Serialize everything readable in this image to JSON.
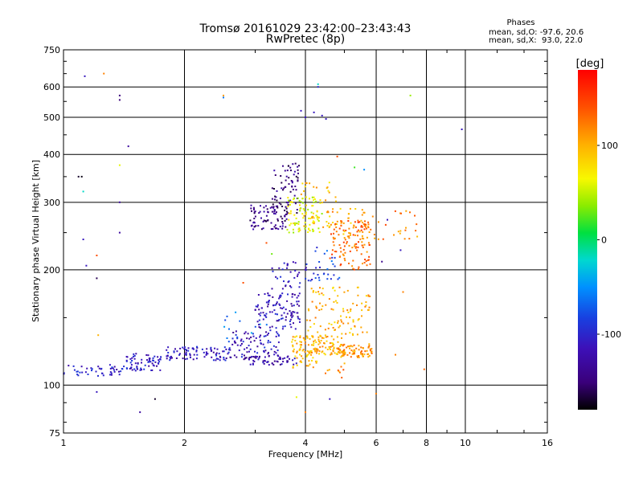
{
  "chart_data": {
    "type": "scatter",
    "title": "Tromsø 20161029 23:42:00–23:43:43",
    "subtitle": "RwPretec (8p)",
    "xlabel": "Frequency [MHz]",
    "ylabel": "Stationary phase Virtual Height [km]",
    "xscale": "log",
    "yscale": "log",
    "xlim": [
      1,
      16
    ],
    "ylim": [
      75,
      750
    ],
    "xticks": [
      1,
      2,
      4,
      6,
      8,
      10,
      16
    ],
    "yticks": [
      75,
      100,
      200,
      300,
      400,
      500,
      600,
      750
    ],
    "grid": true,
    "phases_box": {
      "heading": "Phases",
      "line_o": "mean, sd,O: -97.6, 20.6",
      "line_x": "mean, sd,X:  93.0, 22.0"
    },
    "colorbar": {
      "label": "[deg]",
      "range": [
        -180,
        180
      ],
      "ticks": [
        100,
        0,
        -100
      ]
    },
    "clusters": [
      {
        "x": [
          1.0,
          1.4
        ],
        "y": [
          105,
          113
        ],
        "phase": -105,
        "n": 45
      },
      {
        "x": [
          1.4,
          1.75
        ],
        "y": [
          109,
          121
        ],
        "phase": -110,
        "n": 70
      },
      {
        "x": [
          1.8,
          2.6
        ],
        "y": [
          116,
          126
        ],
        "phase": -110,
        "n": 90
      },
      {
        "x": [
          2.6,
          3.5
        ],
        "y": [
          118,
          140
        ],
        "phase": -115,
        "n": 80
      },
      {
        "x": [
          2.5,
          3.3
        ],
        "y": [
          125,
          155
        ],
        "phase": -60,
        "n": 15
      },
      {
        "x": [
          3.0,
          3.9
        ],
        "y": [
          140,
          175
        ],
        "phase": -115,
        "n": 110
      },
      {
        "x": [
          2.8,
          3.8
        ],
        "y": [
          113,
          119
        ],
        "phase": -125,
        "n": 60
      },
      {
        "x": [
          3.3,
          4.2
        ],
        "y": [
          178,
          210
        ],
        "phase": -110,
        "n": 40
      },
      {
        "x": [
          2.9,
          3.6
        ],
        "y": [
          255,
          295
        ],
        "phase": -140,
        "n": 80
      },
      {
        "x": [
          3.3,
          3.9
        ],
        "y": [
          280,
          380
        ],
        "phase": -145,
        "n": 70
      },
      {
        "x": [
          3.6,
          4.4
        ],
        "y": [
          250,
          310
        ],
        "phase": 60,
        "n": 90
      },
      {
        "x": [
          3.9,
          4.8
        ],
        "y": [
          255,
          340
        ],
        "phase": 95,
        "n": 35
      },
      {
        "x": [
          4.6,
          5.8
        ],
        "y": [
          200,
          270
        ],
        "phase": 130,
        "n": 120
      },
      {
        "x": [
          4.4,
          5.6
        ],
        "y": [
          240,
          290
        ],
        "phase": 100,
        "n": 30
      },
      {
        "x": [
          3.7,
          5.0
        ],
        "y": [
          120,
          135
        ],
        "phase": 100,
        "n": 120
      },
      {
        "x": [
          4.8,
          5.9
        ],
        "y": [
          118,
          128
        ],
        "phase": 110,
        "n": 80
      },
      {
        "x": [
          4.0,
          5.8
        ],
        "y": [
          135,
          180
        ],
        "phase": 100,
        "n": 100
      },
      {
        "x": [
          3.7,
          4.3
        ],
        "y": [
          110,
          125
        ],
        "phase": 95,
        "n": 30
      },
      {
        "x": [
          4.2,
          4.9
        ],
        "y": [
          185,
          230
        ],
        "phase": -80,
        "n": 25
      },
      {
        "x": [
          5.5,
          7.6
        ],
        "y": [
          240,
          285
        ],
        "phase": 120,
        "n": 30
      },
      {
        "x": [
          4.3,
          5.2
        ],
        "y": [
          100,
          115
        ],
        "phase": 120,
        "n": 10
      }
    ],
    "points": [
      {
        "x": 1.13,
        "y": 640,
        "phase": -110
      },
      {
        "x": 1.26,
        "y": 650,
        "phase": 120
      },
      {
        "x": 1.38,
        "y": 570,
        "phase": -150
      },
      {
        "x": 1.38,
        "y": 555,
        "phase": -150
      },
      {
        "x": 1.09,
        "y": 350,
        "phase": -170
      },
      {
        "x": 1.11,
        "y": 350,
        "phase": -175
      },
      {
        "x": 1.38,
        "y": 375,
        "phase": 60
      },
      {
        "x": 1.45,
        "y": 420,
        "phase": -130
      },
      {
        "x": 1.12,
        "y": 320,
        "phase": -20
      },
      {
        "x": 1.12,
        "y": 240,
        "phase": -110
      },
      {
        "x": 1.14,
        "y": 205,
        "phase": -110
      },
      {
        "x": 1.21,
        "y": 190,
        "phase": -160
      },
      {
        "x": 1.21,
        "y": 218,
        "phase": 140
      },
      {
        "x": 1.38,
        "y": 250,
        "phase": -130
      },
      {
        "x": 1.38,
        "y": 300,
        "phase": -130
      },
      {
        "x": 1.22,
        "y": 135,
        "phase": 100
      },
      {
        "x": 1.21,
        "y": 96,
        "phase": -110
      },
      {
        "x": 1.55,
        "y": 85,
        "phase": -130
      },
      {
        "x": 1.69,
        "y": 92,
        "phase": -170
      },
      {
        "x": 2.5,
        "y": 570,
        "phase": 110
      },
      {
        "x": 2.5,
        "y": 563,
        "phase": -60
      },
      {
        "x": 4.3,
        "y": 610,
        "phase": -20
      },
      {
        "x": 4.3,
        "y": 600,
        "phase": -100
      },
      {
        "x": 3.9,
        "y": 520,
        "phase": -110
      },
      {
        "x": 4.0,
        "y": 500,
        "phase": -110
      },
      {
        "x": 4.2,
        "y": 515,
        "phase": -110
      },
      {
        "x": 4.4,
        "y": 505,
        "phase": -110
      },
      {
        "x": 4.5,
        "y": 495,
        "phase": -110
      },
      {
        "x": 7.3,
        "y": 570,
        "phase": 40
      },
      {
        "x": 9.8,
        "y": 465,
        "phase": -110
      },
      {
        "x": 5.3,
        "y": 370,
        "phase": 20
      },
      {
        "x": 4.8,
        "y": 395,
        "phase": 140
      },
      {
        "x": 5.6,
        "y": 365,
        "phase": -50
      },
      {
        "x": 7.0,
        "y": 175,
        "phase": 120
      },
      {
        "x": 6.7,
        "y": 120,
        "phase": 120
      },
      {
        "x": 6.2,
        "y": 210,
        "phase": -140
      },
      {
        "x": 6.0,
        "y": 95,
        "phase": 120
      },
      {
        "x": 4.6,
        "y": 92,
        "phase": -110
      },
      {
        "x": 4.0,
        "y": 85,
        "phase": 120
      },
      {
        "x": 3.8,
        "y": 93,
        "phase": 60
      },
      {
        "x": 2.8,
        "y": 185,
        "phase": 140
      },
      {
        "x": 3.2,
        "y": 235,
        "phase": 140
      },
      {
        "x": 3.3,
        "y": 220,
        "phase": 30
      },
      {
        "x": 7.9,
        "y": 110,
        "phase": 130
      },
      {
        "x": 6.4,
        "y": 270,
        "phase": -110
      },
      {
        "x": 6.9,
        "y": 225,
        "phase": -110
      }
    ]
  }
}
